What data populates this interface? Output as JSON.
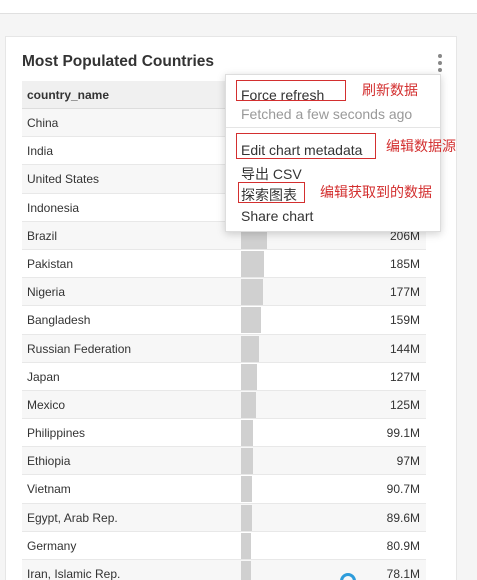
{
  "card": {
    "title": "Most Populated Countries"
  },
  "table": {
    "header": "country_name",
    "rows": [
      {
        "country": "China",
        "value": "",
        "fraction": 1.0
      },
      {
        "country": "India",
        "value": "",
        "fraction": 0.95
      },
      {
        "country": "United States",
        "value": "",
        "fraction": 0.23
      },
      {
        "country": "Indonesia",
        "value": "",
        "fraction": 0.19
      },
      {
        "country": "Brazil",
        "value": "206M",
        "fraction": 0.15
      },
      {
        "country": "Pakistan",
        "value": "185M",
        "fraction": 0.135
      },
      {
        "country": "Nigeria",
        "value": "177M",
        "fraction": 0.13
      },
      {
        "country": "Bangladesh",
        "value": "159M",
        "fraction": 0.116
      },
      {
        "country": "Russian Federation",
        "value": "144M",
        "fraction": 0.105
      },
      {
        "country": "Japan",
        "value": "127M",
        "fraction": 0.093
      },
      {
        "country": "Mexico",
        "value": "125M",
        "fraction": 0.091
      },
      {
        "country": "Philippines",
        "value": "99.1M",
        "fraction": 0.072
      },
      {
        "country": "Ethiopia",
        "value": "97M",
        "fraction": 0.071
      },
      {
        "country": "Vietnam",
        "value": "90.7M",
        "fraction": 0.066
      },
      {
        "country": "Egypt, Arab Rep.",
        "value": "89.6M",
        "fraction": 0.065
      },
      {
        "country": "Germany",
        "value": "80.9M",
        "fraction": 0.059
      },
      {
        "country": "Iran, Islamic Rep.",
        "value": "78.1M",
        "fraction": 0.057
      }
    ]
  },
  "menu": {
    "force_refresh": "Force refresh",
    "fetched": "Fetched a few seconds ago",
    "edit_metadata": "Edit chart metadata",
    "export_csv": "导出 CSV",
    "explore": "探索图表",
    "share": "Share chart"
  },
  "annotations": {
    "refresh": "刷新数据",
    "edit_source": "编辑数据源",
    "edit_fetched": "编辑获取到的数据"
  },
  "colors": {
    "annotation": "#d32f2f",
    "bar": "#d0d0d0",
    "loader": "#2d9cdb"
  }
}
